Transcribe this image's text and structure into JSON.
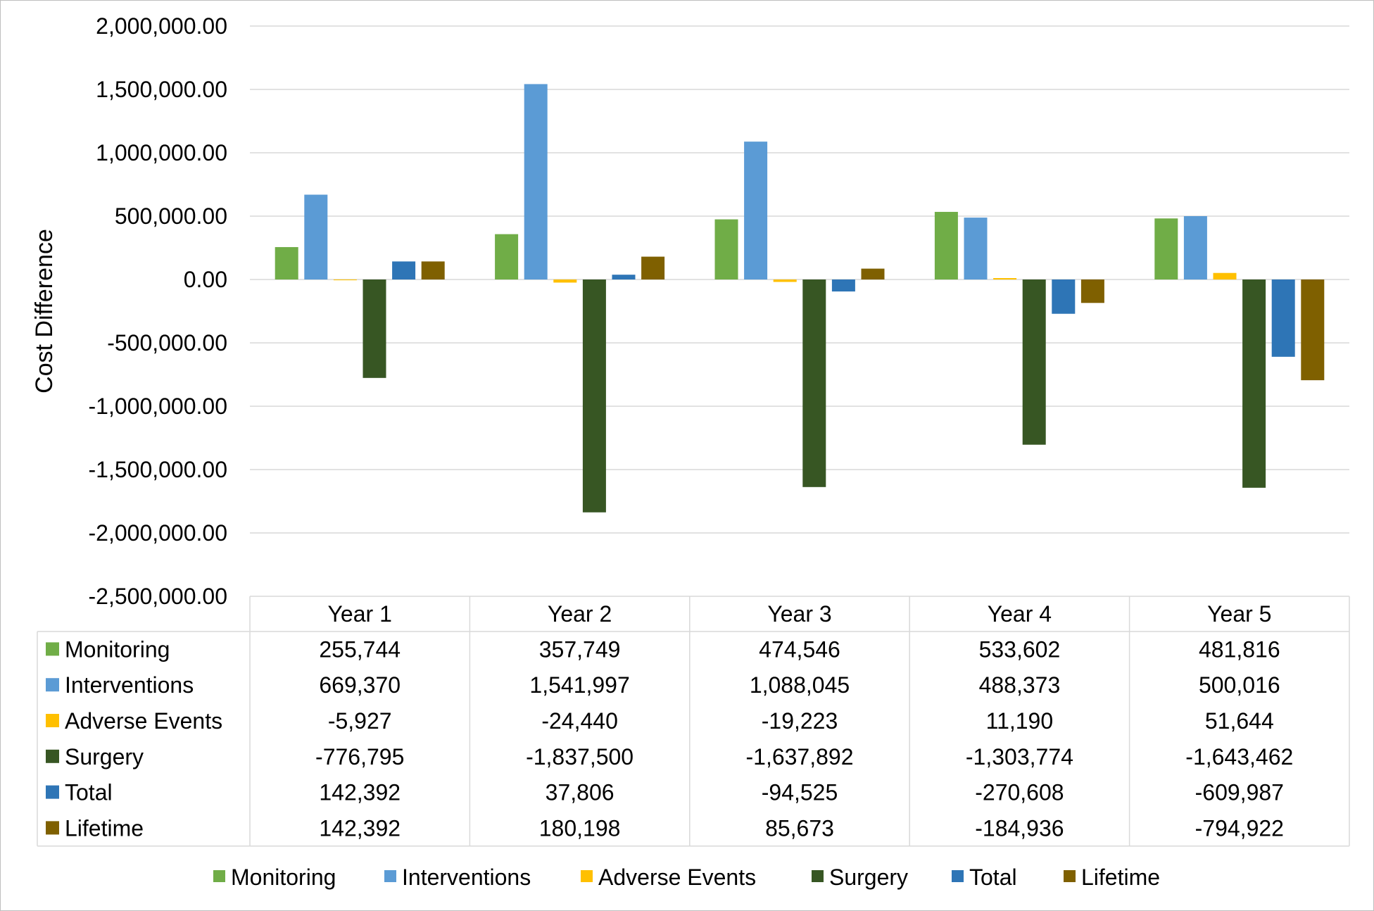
{
  "chart_data": {
    "type": "bar",
    "ylabel": "Cost Difference",
    "ylim": [
      -2500000,
      2000000
    ],
    "y_ticks": [
      2000000,
      1500000,
      1000000,
      500000,
      0,
      -500000,
      -1000000,
      -1500000,
      -2000000,
      -2500000
    ],
    "y_tick_labels": [
      "2,000,000.00",
      "1,500,000.00",
      "1,000,000.00",
      "500,000.00",
      "0.00",
      "-500,000.00",
      "-1,000,000.00",
      "-1,500,000.00",
      "-2,000,000.00",
      "-2,500,000.00"
    ],
    "categories": [
      "Year 1",
      "Year 2",
      "Year 3",
      "Year 4",
      "Year 5"
    ],
    "grid": true,
    "legend_position": "bottom",
    "series": [
      {
        "name": "Monitoring",
        "color": "#70ad47",
        "values": [
          255744,
          357749,
          474546,
          533602,
          481816
        ],
        "labels": [
          "255,744",
          "357,749",
          "474,546",
          "533,602",
          "481,816"
        ]
      },
      {
        "name": "Interventions",
        "color": "#5b9bd5",
        "values": [
          669370,
          1541997,
          1088045,
          488373,
          500016
        ],
        "labels": [
          "669,370",
          "1,541,997",
          "1,088,045",
          "488,373",
          "500,016"
        ]
      },
      {
        "name": "Adverse Events",
        "color": "#ffc000",
        "values": [
          -5927,
          -24440,
          -19223,
          11190,
          51644
        ],
        "labels": [
          "-5,927",
          "-24,440",
          "-19,223",
          "11,190",
          "51,644"
        ]
      },
      {
        "name": "Surgery",
        "color": "#375623",
        "values": [
          -776795,
          -1837500,
          -1637892,
          -1303774,
          -1643462
        ],
        "labels": [
          "-776,795",
          "-1,837,500",
          "-1,637,892",
          "-1,303,774",
          "-1,643,462"
        ]
      },
      {
        "name": "Total",
        "color": "#2e75b6",
        "values": [
          142392,
          37806,
          -94525,
          -270608,
          -609987
        ],
        "labels": [
          "142,392",
          "37,806",
          "-94,525",
          "-270,608",
          "-609,987"
        ]
      },
      {
        "name": "Lifetime",
        "color": "#7f6000",
        "values": [
          142392,
          180198,
          85673,
          -184936,
          -794922
        ],
        "labels": [
          "142,392",
          "180,198",
          "85,673",
          "-184,936",
          "-794,922"
        ]
      }
    ]
  }
}
